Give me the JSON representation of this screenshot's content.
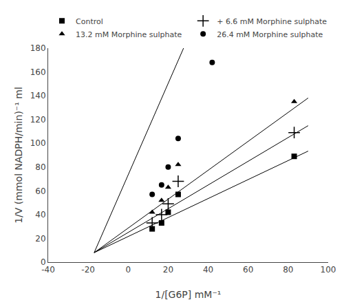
{
  "chart_data": {
    "type": "scatter",
    "xlabel": "1/[G6P] mM⁻¹",
    "ylabel": "1/V (mmol NADPH/min)⁻¹ ml",
    "xlim": [
      -40,
      100
    ],
    "ylim": [
      0,
      180
    ],
    "xticks": [
      -40,
      -20,
      0,
      20,
      40,
      60,
      80,
      100
    ],
    "yticks": [
      0,
      20,
      40,
      60,
      80,
      100,
      120,
      140,
      160,
      180
    ],
    "grid": false,
    "legend": "top",
    "series": [
      {
        "name": "Control",
        "marker": "square",
        "color": "black",
        "x": [
          12,
          16.7,
          20,
          25,
          83
        ],
        "values": [
          28,
          33,
          42,
          57,
          89
        ],
        "fit_line": {
          "x": [
            -17,
            90
          ],
          "values": [
            8,
            93.43
          ]
        }
      },
      {
        "name": "+ 6.6 mM Morphine sulphate",
        "marker": "plus",
        "color": "black",
        "x": [
          12,
          16.7,
          20,
          25,
          83
        ],
        "values": [
          33,
          40,
          49,
          68,
          109
        ],
        "fit_line": {
          "x": [
            -17,
            90
          ],
          "values": [
            8,
            114.83
          ]
        }
      },
      {
        "name": "13.2 mM Morphine sulphate",
        "marker": "triangle",
        "color": "black",
        "x": [
          12,
          16.7,
          20,
          25,
          83
        ],
        "values": [
          42,
          52,
          63,
          82,
          135
        ],
        "fit_line": {
          "x": [
            -17,
            90
          ],
          "values": [
            8,
            138.12
          ]
        }
      },
      {
        "name": "26.4 mM Morphine sulphate",
        "marker": "circle",
        "color": "black",
        "x": [
          12,
          16.7,
          20,
          25,
          42
        ],
        "values": [
          57,
          65,
          80,
          104,
          168
        ],
        "fit_line": {
          "x": [
            -17,
            27.7
          ],
          "values": [
            8,
            180
          ]
        }
      }
    ]
  }
}
